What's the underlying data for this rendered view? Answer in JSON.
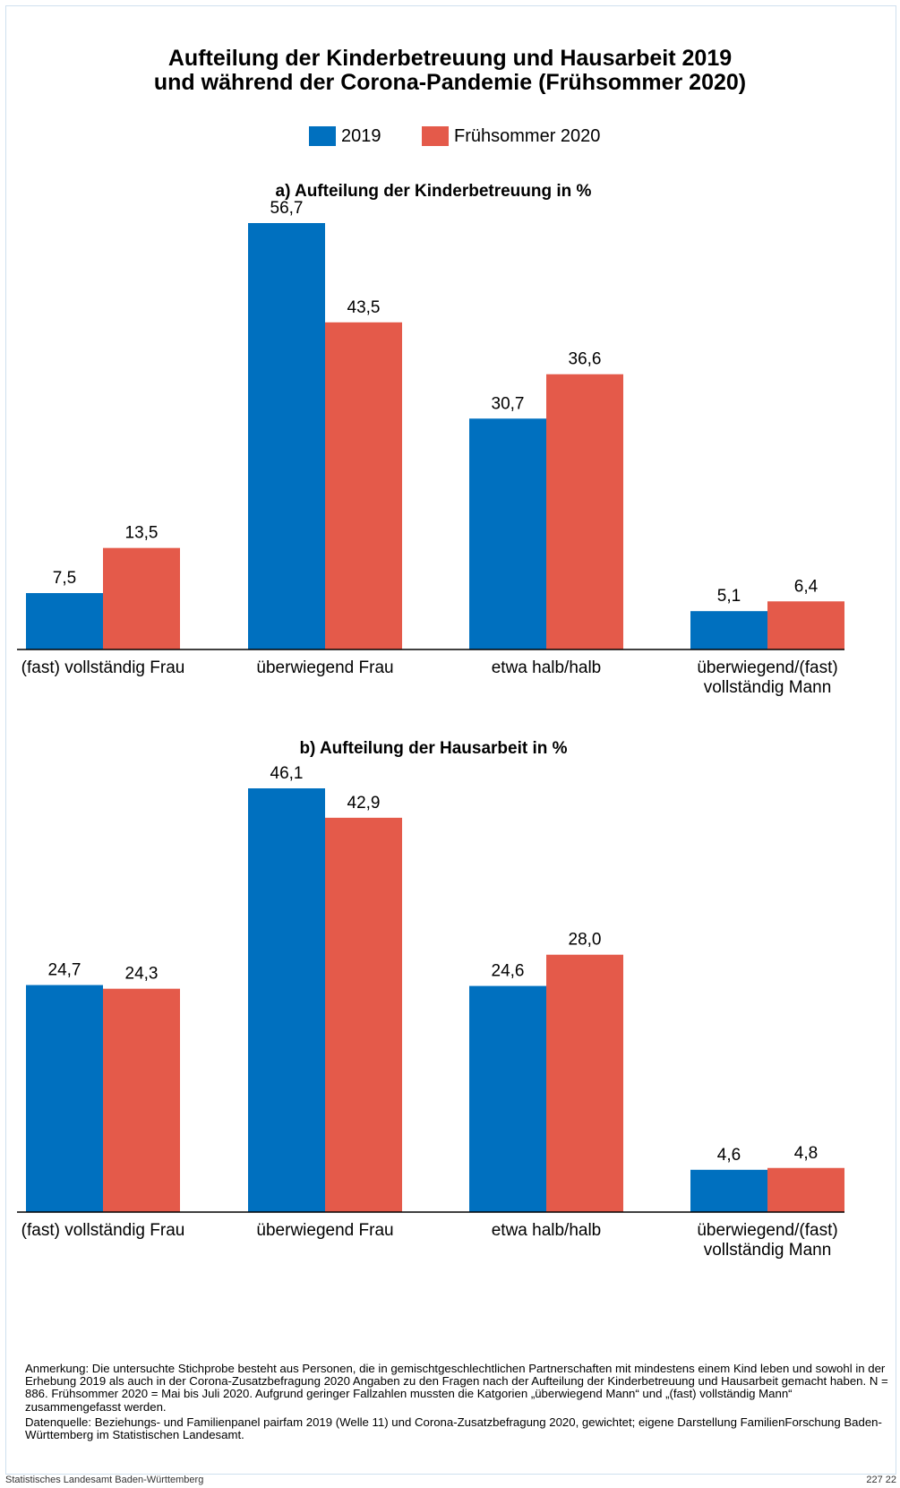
{
  "title_line1": "Aufteilung der Kinderbetreuung und Hausarbeit 2019",
  "title_line2": "und während der Corona-Pandemie (Frühsommer 2020)",
  "legend": [
    {
      "label": "2019",
      "color": "#0070bf"
    },
    {
      "label": "Frühsommer 2020",
      "color": "#e45a4a"
    }
  ],
  "chart_data": [
    {
      "type": "bar",
      "title": "a) Aufteilung der Kinderbetreuung in %",
      "categories": [
        "(fast) vollständig Frau",
        "überwiegend Frau",
        "etwa halb/halb",
        "überwiegend/(fast)|vollständig Mann"
      ],
      "series": [
        {
          "name": "2019",
          "values": [
            7.5,
            56.7,
            30.7,
            5.1
          ],
          "labels": [
            "7,5",
            "56,7",
            "30,7",
            "5,1"
          ],
          "color": "#0070bf"
        },
        {
          "name": "Frühsommer 2020",
          "values": [
            13.5,
            43.5,
            36.6,
            6.4
          ],
          "labels": [
            "13,5",
            "43,5",
            "36,6",
            "6,4"
          ],
          "color": "#e45a4a"
        }
      ],
      "ylim": [
        0,
        56.7
      ],
      "grid": false
    },
    {
      "type": "bar",
      "title": "b) Aufteilung der Hausarbeit in %",
      "categories": [
        "(fast) vollständig Frau",
        "überwiegend Frau",
        "etwa halb/halb",
        "überwiegend/(fast)|vollständig Mann"
      ],
      "series": [
        {
          "name": "2019",
          "values": [
            24.7,
            46.1,
            24.6,
            4.6
          ],
          "labels": [
            "24,7",
            "46,1",
            "24,6",
            "4,6"
          ],
          "color": "#0070bf"
        },
        {
          "name": "Frühsommer 2020",
          "values": [
            24.3,
            42.9,
            28.0,
            4.8
          ],
          "labels": [
            "24,3",
            "42,9",
            "28,0",
            "4,8"
          ],
          "color": "#e45a4a"
        }
      ],
      "ylim": [
        0,
        46.1
      ],
      "grid": false
    }
  ],
  "note": "Anmerkung: Die untersuchte Stichprobe besteht aus Personen, die in gemischtgeschlechtlichen Partnerschaften mit mindestens einem Kind leben und sowohl in der Erhebung 2019 als auch in der Corona-Zusatzbefragung 2020 Angaben zu den Fragen nach der Aufteilung der Kinderbetreuung und Hausarbeit gemacht haben. N = 886. Frühsommer 2020 = Mai bis Juli 2020. Aufgrund geringer Fallzahlen mussten die Katgorien „überwiegend Mann“ und „(fast) vollständig Mann“ zusammengefasst werden.",
  "source": "Datenquelle: Beziehungs- und Familienpanel pairfam 2019 (Welle 11) und Corona-Zusatzbefragung 2020, gewichtet; eigene Darstellung FamilienForschung Baden-Württemberg im Statistischen Landesamt.",
  "footer_left": "Statistisches Landesamt Baden-Württemberg",
  "footer_right": "227 22"
}
